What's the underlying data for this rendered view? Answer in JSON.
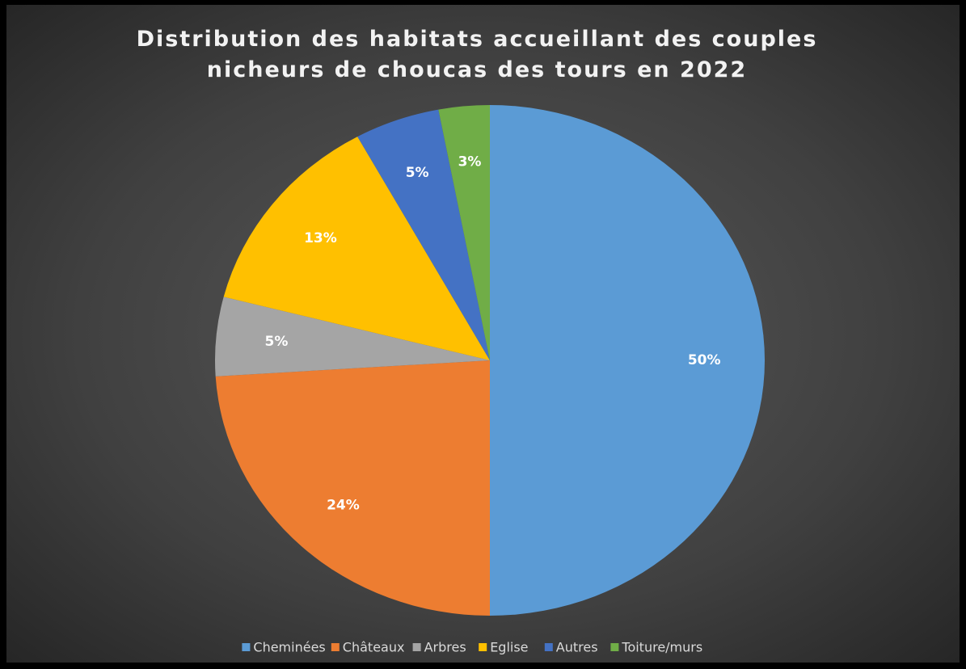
{
  "chart_data": {
    "type": "pie",
    "title": "Distribution des habitats accueillant des couples nicheurs de choucas des tours en 2022",
    "categories": [
      "Cheminées",
      "Châteaux",
      "Arbres",
      "Eglise",
      "Autres",
      "Toiture/murs"
    ],
    "values": [
      50,
      24,
      5,
      13,
      5,
      3
    ],
    "value_labels": [
      "50%",
      "24%",
      "5%",
      "13%",
      "5%",
      "3%"
    ],
    "colors": [
      "#5b9bd5",
      "#ed7d31",
      "#a5a5a5",
      "#ffc000",
      "#4472c4",
      "#70ad47"
    ],
    "legend": "bottom"
  }
}
